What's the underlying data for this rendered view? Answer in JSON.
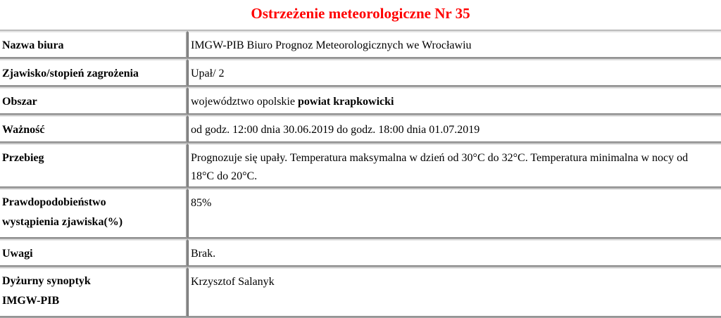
{
  "title": "Ostrzeżenie meteorologiczne Nr 35",
  "colors": {
    "title": "#ff0000",
    "border": "#a0a0a0"
  },
  "rows": [
    {
      "label": "Nazwa biura",
      "value": "IMGW-PIB Biuro Prognoz Meteorologicznych we Wrocławiu"
    },
    {
      "label": "Zjawisko/stopień zagrożenia",
      "value": "Upał/ 2"
    },
    {
      "label": "Obszar",
      "value": "województwo opolskie ",
      "value_bold": "powiat krapkowicki"
    },
    {
      "label": "Ważność",
      "value": "od godz. 12:00 dnia 30.06.2019 do godz. 18:00 dnia 01.07.2019"
    },
    {
      "label": "Przebieg",
      "value": "Prognozuje się upały. Temperatura maksymalna w dzień od 30°C do 32°C. Temperatura minimalna w nocy od 18°C do 20°C."
    },
    {
      "label": "Prawdopodobieństwo wystąpienia zjawiska(%)",
      "value": "85%"
    },
    {
      "label": "Uwagi",
      "value": "Brak."
    },
    {
      "label": "Dyżurny synoptyk IMGW-PIB",
      "value": "Krzysztof Salanyk"
    }
  ]
}
